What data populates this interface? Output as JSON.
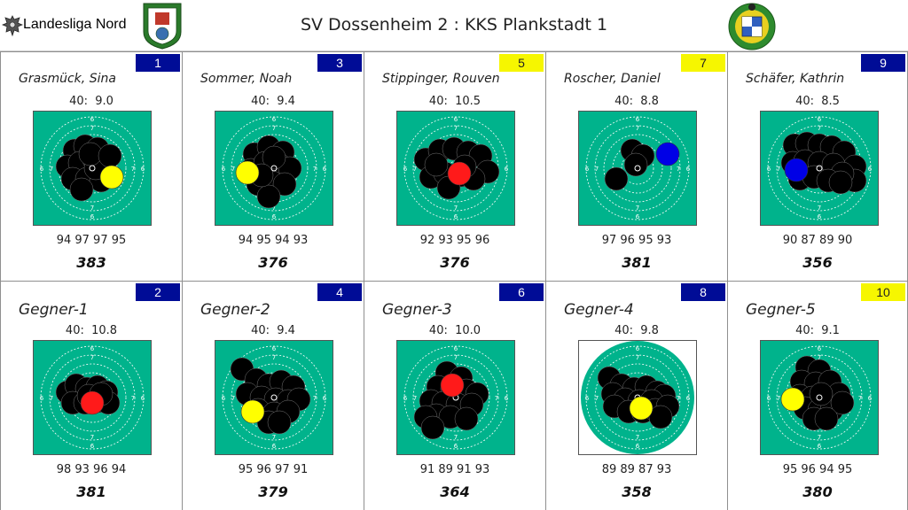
{
  "header": {
    "league": "Landesliga Nord",
    "match_title": "SV Dossenheim 2 : KKS Plankstadt 1",
    "home_logo_icon": "sv-dossenheim-crest-icon",
    "guest_logo_icon": "kks-plankstadt-crest-icon",
    "league_logo_icon": "eagle-crest-icon"
  },
  "colors": {
    "target_green": "#00b38c",
    "shot_black": "#000000",
    "last_shot_red": "#ff1a1a",
    "last_shot_yellow": "#ffff00",
    "last_shot_blue": "#0000e6",
    "badge_blue": "#000c96",
    "badge_yellow": "#f6f600"
  },
  "cards": [
    {
      "number": "1",
      "badge": "blue",
      "name": "Grasmück, Sina",
      "name_size": "small",
      "last_shot": "40:  9.0",
      "series": "94 97 97 95",
      "total": "383",
      "last_color": "yellow"
    },
    {
      "number": "3",
      "badge": "blue",
      "name": "Sommer, Noah",
      "name_size": "small",
      "last_shot": "40:  9.4",
      "series": "94 95 94 93",
      "total": "376",
      "last_color": "yellow"
    },
    {
      "number": "5",
      "badge": "yellow",
      "name": "Stippinger, Rouven",
      "name_size": "small",
      "last_shot": "40:  10.5",
      "series": "92 93 95 96",
      "total": "376",
      "last_color": "red"
    },
    {
      "number": "7",
      "badge": "yellow",
      "name": "Roscher, Daniel",
      "name_size": "small",
      "last_shot": "40:  8.8",
      "series": "97 96 95 93",
      "total": "381",
      "last_color": "blue"
    },
    {
      "number": "9",
      "badge": "blue",
      "name": "Schäfer, Kathrin",
      "name_size": "small",
      "last_shot": "40:  8.5",
      "series": "90 87 89 90",
      "total": "356",
      "last_color": "blue"
    },
    {
      "number": "2",
      "badge": "blue",
      "name": "Gegner-1",
      "name_size": "large",
      "last_shot": "40:  10.8",
      "series": "98 93 96 94",
      "total": "381",
      "last_color": "red"
    },
    {
      "number": "4",
      "badge": "blue",
      "name": "Gegner-2",
      "name_size": "large",
      "last_shot": "40:  9.4",
      "series": "95 96 97 91",
      "total": "379",
      "last_color": "yellow"
    },
    {
      "number": "6",
      "badge": "blue",
      "name": "Gegner-3",
      "name_size": "large",
      "last_shot": "40:  10.0",
      "series": "91 89 91 93",
      "total": "364",
      "last_color": "red"
    },
    {
      "number": "8",
      "badge": "blue",
      "name": "Gegner-4",
      "name_size": "large",
      "last_shot": "40:  9.8",
      "series": "89 89 87 93",
      "total": "358",
      "last_color": "yellow"
    },
    {
      "number": "10",
      "badge": "yellow",
      "name": "Gegner-5",
      "name_size": "large",
      "last_shot": "40:  9.1",
      "series": "95 96 94 95",
      "total": "380",
      "last_color": "yellow"
    }
  ]
}
